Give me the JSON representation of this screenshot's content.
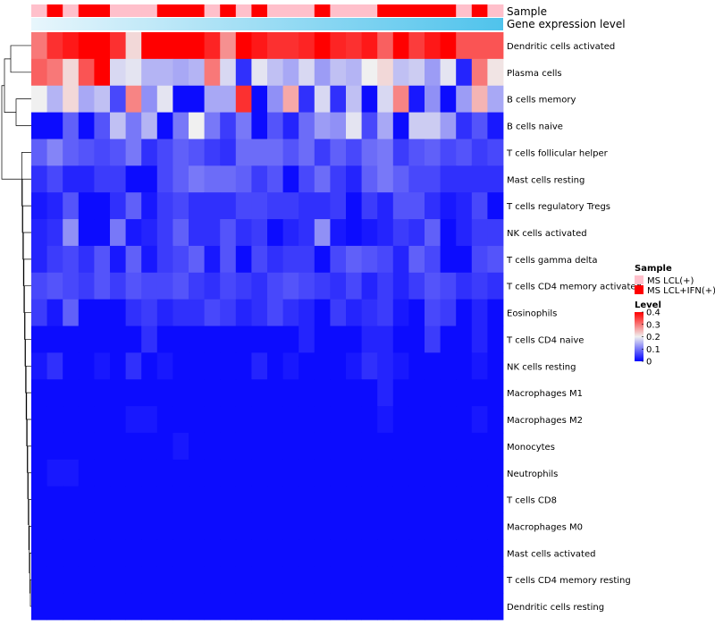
{
  "chart_data": {
    "type": "heatmap",
    "title": "",
    "annotation_tracks": [
      {
        "name": "Sample",
        "label": "Sample"
      },
      {
        "name": "Gene expression level",
        "label": "Gene expression level"
      }
    ],
    "rows": [
      "Dendritic cells activated",
      "Plasma cells",
      "B cells memory",
      "B cells naive",
      "T cells follicular helper",
      "Mast cells resting",
      "T cells regulatory  Tregs",
      "NK cells activated",
      "T cells gamma delta",
      "T cells CD4 memory activated",
      "Eosinophils",
      "T cells CD4 naive",
      "NK cells resting",
      "Macrophages M1",
      "Macrophages M2",
      "Monocytes",
      "Neutrophils",
      "T cells CD8",
      "Macrophages M0",
      "Mast cells activated",
      "T cells CD4 memory resting",
      "Dendritic cells resting"
    ],
    "sample_groups": [
      1,
      2,
      1,
      2,
      2,
      1,
      1,
      1,
      2,
      2,
      2,
      1,
      2,
      1,
      2,
      1,
      1,
      1,
      2,
      1,
      1,
      1,
      2,
      2,
      2,
      2,
      2,
      1,
      2,
      1
    ],
    "values": [
      [
        0.3,
        0.36,
        0.38,
        0.4,
        0.4,
        0.36,
        0.22,
        0.4,
        0.4,
        0.4,
        0.4,
        0.37,
        0.28,
        0.4,
        0.38,
        0.36,
        0.36,
        0.37,
        0.4,
        0.37,
        0.36,
        0.38,
        0.32,
        0.4,
        0.35,
        0.38,
        0.4,
        0.33,
        0.33,
        0.33
      ],
      [
        0.32,
        0.3,
        0.22,
        0.33,
        0.4,
        0.18,
        0.19,
        0.15,
        0.15,
        0.14,
        0.15,
        0.3,
        0.18,
        0.04,
        0.19,
        0.16,
        0.14,
        0.18,
        0.13,
        0.16,
        0.15,
        0.2,
        0.22,
        0.16,
        0.17,
        0.13,
        0.19,
        0.03,
        0.3,
        0.21
      ],
      [
        0.2,
        0.15,
        0.22,
        0.14,
        0.16,
        0.06,
        0.29,
        0.12,
        0.19,
        0.01,
        0.01,
        0.14,
        0.14,
        0.36,
        0.01,
        0.12,
        0.26,
        0.04,
        0.18,
        0.04,
        0.16,
        0.01,
        0.18,
        0.29,
        0.02,
        0.12,
        0.01,
        0.13,
        0.25,
        0.14
      ],
      [
        0.01,
        0.01,
        0.08,
        0.01,
        0.07,
        0.16,
        0.1,
        0.15,
        0.01,
        0.1,
        0.2,
        0.1,
        0.05,
        0.1,
        0.01,
        0.07,
        0.03,
        0.09,
        0.13,
        0.12,
        0.19,
        0.06,
        0.14,
        0.01,
        0.17,
        0.17,
        0.13,
        0.04,
        0.07,
        0.02
      ],
      [
        0.08,
        0.11,
        0.08,
        0.07,
        0.06,
        0.07,
        0.1,
        0.04,
        0.06,
        0.08,
        0.07,
        0.05,
        0.04,
        0.09,
        0.09,
        0.09,
        0.07,
        0.09,
        0.05,
        0.08,
        0.06,
        0.09,
        0.1,
        0.05,
        0.07,
        0.08,
        0.06,
        0.07,
        0.05,
        0.06
      ],
      [
        0.04,
        0.06,
        0.03,
        0.03,
        0.05,
        0.05,
        0.01,
        0.01,
        0.06,
        0.08,
        0.1,
        0.09,
        0.09,
        0.08,
        0.05,
        0.07,
        0.01,
        0.06,
        0.09,
        0.05,
        0.03,
        0.08,
        0.1,
        0.08,
        0.06,
        0.06,
        0.04,
        0.04,
        0.04,
        0.04
      ],
      [
        0.02,
        0.03,
        0.07,
        0.01,
        0.01,
        0.04,
        0.08,
        0.02,
        0.05,
        0.06,
        0.04,
        0.04,
        0.04,
        0.06,
        0.06,
        0.05,
        0.05,
        0.04,
        0.04,
        0.05,
        0.01,
        0.05,
        0.03,
        0.07,
        0.07,
        0.04,
        0.02,
        0.03,
        0.06,
        0.01
      ],
      [
        0.03,
        0.04,
        0.12,
        0.01,
        0.01,
        0.1,
        0.02,
        0.03,
        0.05,
        0.08,
        0.04,
        0.04,
        0.07,
        0.04,
        0.05,
        0.01,
        0.03,
        0.04,
        0.12,
        0.02,
        0.01,
        0.02,
        0.03,
        0.05,
        0.04,
        0.08,
        0.01,
        0.03,
        0.05,
        0.05
      ],
      [
        0.03,
        0.05,
        0.06,
        0.04,
        0.07,
        0.02,
        0.08,
        0.02,
        0.05,
        0.06,
        0.08,
        0.02,
        0.07,
        0.01,
        0.06,
        0.04,
        0.05,
        0.05,
        0.01,
        0.06,
        0.08,
        0.07,
        0.06,
        0.03,
        0.08,
        0.06,
        0.01,
        0.01,
        0.06,
        0.07
      ],
      [
        0.06,
        0.07,
        0.06,
        0.05,
        0.07,
        0.05,
        0.07,
        0.06,
        0.06,
        0.07,
        0.05,
        0.04,
        0.06,
        0.05,
        0.04,
        0.06,
        0.07,
        0.06,
        0.05,
        0.04,
        0.06,
        0.03,
        0.05,
        0.03,
        0.05,
        0.07,
        0.06,
        0.04,
        0.05,
        0.04
      ],
      [
        0.05,
        0.02,
        0.08,
        0.01,
        0.01,
        0.01,
        0.04,
        0.05,
        0.03,
        0.04,
        0.04,
        0.06,
        0.05,
        0.03,
        0.04,
        0.06,
        0.04,
        0.03,
        0.01,
        0.05,
        0.03,
        0.04,
        0.05,
        0.02,
        0.01,
        0.06,
        0.05,
        0.01,
        0.03,
        0.01
      ],
      [
        0.01,
        0.01,
        0.01,
        0.01,
        0.01,
        0.01,
        0.01,
        0.04,
        0.01,
        0.01,
        0.01,
        0.01,
        0.01,
        0.01,
        0.01,
        0.01,
        0.01,
        0.03,
        0.01,
        0.01,
        0.01,
        0.03,
        0.03,
        0.01,
        0.01,
        0.05,
        0.01,
        0.01,
        0.03,
        0.01
      ],
      [
        0.02,
        0.04,
        0.01,
        0.01,
        0.02,
        0.01,
        0.04,
        0.01,
        0.02,
        0.01,
        0.01,
        0.01,
        0.01,
        0.01,
        0.03,
        0.01,
        0.02,
        0.01,
        0.01,
        0.01,
        0.02,
        0.04,
        0.03,
        0.02,
        0.01,
        0.01,
        0.01,
        0.01,
        0.02,
        0.01
      ],
      [
        0.01,
        0.01,
        0.01,
        0.01,
        0.01,
        0.01,
        0.01,
        0.01,
        0.01,
        0.01,
        0.01,
        0.01,
        0.01,
        0.01,
        0.01,
        0.01,
        0.01,
        0.01,
        0.01,
        0.01,
        0.01,
        0.01,
        0.03,
        0.01,
        0.01,
        0.01,
        0.01,
        0.01,
        0.01,
        0.01
      ],
      [
        0.01,
        0.01,
        0.01,
        0.01,
        0.01,
        0.01,
        0.02,
        0.02,
        0.01,
        0.01,
        0.01,
        0.01,
        0.01,
        0.01,
        0.01,
        0.01,
        0.01,
        0.01,
        0.01,
        0.01,
        0.01,
        0.01,
        0.02,
        0.01,
        0.01,
        0.01,
        0.01,
        0.01,
        0.02,
        0.01
      ],
      [
        0.01,
        0.01,
        0.01,
        0.01,
        0.01,
        0.01,
        0.01,
        0.01,
        0.01,
        0.02,
        0.01,
        0.01,
        0.01,
        0.01,
        0.01,
        0.01,
        0.01,
        0.01,
        0.01,
        0.01,
        0.01,
        0.01,
        0.01,
        0.01,
        0.01,
        0.01,
        0.01,
        0.01,
        0.01,
        0.01
      ],
      [
        0.01,
        0.02,
        0.02,
        0.01,
        0.01,
        0.01,
        0.01,
        0.01,
        0.01,
        0.01,
        0.01,
        0.01,
        0.01,
        0.01,
        0.01,
        0.01,
        0.01,
        0.01,
        0.01,
        0.01,
        0.01,
        0.01,
        0.01,
        0.01,
        0.01,
        0.01,
        0.01,
        0.01,
        0.01,
        0.01
      ],
      [
        0.01,
        0.01,
        0.01,
        0.01,
        0.01,
        0.01,
        0.01,
        0.01,
        0.01,
        0.01,
        0.01,
        0.01,
        0.01,
        0.01,
        0.01,
        0.01,
        0.01,
        0.01,
        0.01,
        0.01,
        0.01,
        0.01,
        0.01,
        0.01,
        0.01,
        0.01,
        0.01,
        0.01,
        0.01,
        0.01
      ],
      [
        0.01,
        0.01,
        0.01,
        0.01,
        0.01,
        0.01,
        0.01,
        0.01,
        0.01,
        0.01,
        0.01,
        0.01,
        0.01,
        0.01,
        0.01,
        0.01,
        0.01,
        0.01,
        0.01,
        0.01,
        0.01,
        0.01,
        0.01,
        0.01,
        0.01,
        0.01,
        0.01,
        0.01,
        0.01,
        0.01
      ],
      [
        0.01,
        0.01,
        0.01,
        0.01,
        0.01,
        0.01,
        0.01,
        0.01,
        0.01,
        0.01,
        0.01,
        0.01,
        0.01,
        0.01,
        0.01,
        0.01,
        0.01,
        0.01,
        0.01,
        0.01,
        0.01,
        0.01,
        0.01,
        0.01,
        0.01,
        0.01,
        0.01,
        0.01,
        0.01,
        0.01
      ],
      [
        0.01,
        0.01,
        0.01,
        0.01,
        0.01,
        0.01,
        0.01,
        0.01,
        0.01,
        0.01,
        0.01,
        0.01,
        0.01,
        0.01,
        0.01,
        0.01,
        0.01,
        0.01,
        0.01,
        0.01,
        0.01,
        0.01,
        0.01,
        0.01,
        0.01,
        0.01,
        0.01,
        0.01,
        0.01,
        0.01
      ],
      [
        0.01,
        0.01,
        0.01,
        0.01,
        0.01,
        0.01,
        0.01,
        0.01,
        0.01,
        0.01,
        0.01,
        0.01,
        0.01,
        0.01,
        0.01,
        0.01,
        0.01,
        0.01,
        0.01,
        0.01,
        0.01,
        0.01,
        0.01,
        0.01,
        0.01,
        0.01,
        0.01,
        0.01,
        0.01,
        0.01
      ]
    ],
    "color_scale": {
      "min": 0,
      "mid": 0.2,
      "max": 0.4,
      "low_color": "#0000ff",
      "mid_color": "#f0f0f0",
      "high_color": "#ff0000"
    },
    "legends": {
      "sample": {
        "title": "Sample",
        "entries": [
          {
            "label": "MS LCL(+)",
            "color": "#ffc0cb"
          },
          {
            "label": "MS LCL+IFN(+)",
            "color": "#ff0000"
          }
        ]
      },
      "level": {
        "title": "Level",
        "ticks": [
          {
            "value": 0.4,
            "label": "0.4"
          },
          {
            "value": 0.3,
            "label": "0.3"
          },
          {
            "value": 0.2,
            "label": "0.2"
          },
          {
            "value": 0.1,
            "label": "0.1"
          },
          {
            "value": 0,
            "label": "0"
          }
        ]
      }
    },
    "expression_gradient": {
      "from": "#e8f6fc",
      "to": "#4fc3ec"
    }
  }
}
